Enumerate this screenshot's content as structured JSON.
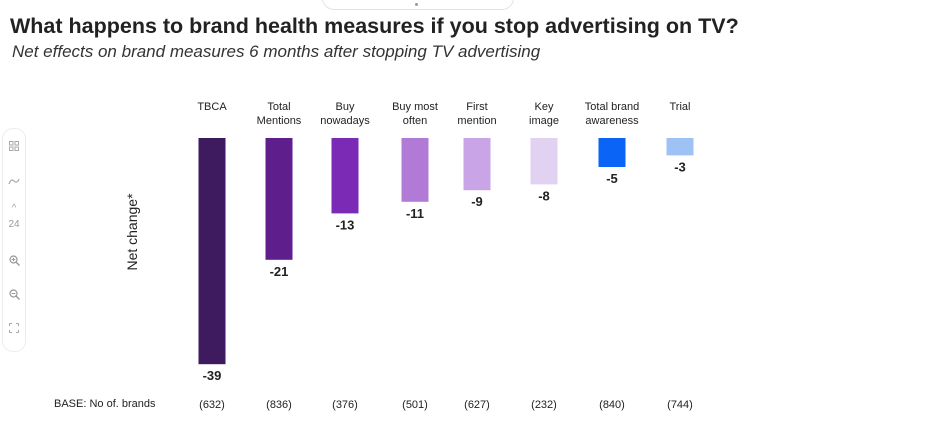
{
  "title": "What happens to brand health measures if you stop advertising on TV?",
  "subtitle": "Net effects on brand measures 6 months after stopping TV advertising",
  "toolbar": {
    "zoom_level": "24",
    "tools": [
      "grid-icon",
      "pan-icon",
      "chevron-up-icon",
      "zoom-level",
      "zoom-in-icon",
      "zoom-out-icon",
      "fit-screen-icon"
    ]
  },
  "base_label": "BASE: No of. brands",
  "chart_data": {
    "type": "bar",
    "title": "What happens to brand health measures if you stop advertising on TV?",
    "subtitle": "Net effects on brand measures 6 months after stopping TV advertising",
    "ylabel": "Net change*",
    "xlabel": "",
    "categories": [
      "TBCA",
      "Total Mentions",
      "Buy nowadays",
      "Buy most often",
      "First mention",
      "Key image",
      "Total brand awareness",
      "Trial"
    ],
    "category_lines": [
      [
        "TBCA"
      ],
      [
        "Total",
        "Mentions"
      ],
      [
        "Buy",
        "nowadays"
      ],
      [
        "Buy most",
        "often"
      ],
      [
        "First",
        "mention"
      ],
      [
        "Key",
        "image"
      ],
      [
        "Total brand",
        "awareness"
      ],
      [
        "Trial"
      ]
    ],
    "values": [
      -39,
      -21,
      -13,
      -11,
      -9,
      -8,
      -5,
      -3
    ],
    "value_labels": [
      "-39",
      "-21",
      "-13",
      "-11",
      "-9",
      "-8",
      "-5",
      "-3"
    ],
    "colors": [
      "#3e1a5e",
      "#5e1f8c",
      "#7b2ab5",
      "#b07ad6",
      "#c9a4e6",
      "#e2d2f2",
      "#0a64f5",
      "#9fc2f5"
    ],
    "base_counts": [
      "(632)",
      "(836)",
      "(376)",
      "(501)",
      "(627)",
      "(232)",
      "(840)",
      "(744)"
    ],
    "ylim": [
      -40,
      0
    ],
    "grid": false,
    "legend": "none"
  }
}
